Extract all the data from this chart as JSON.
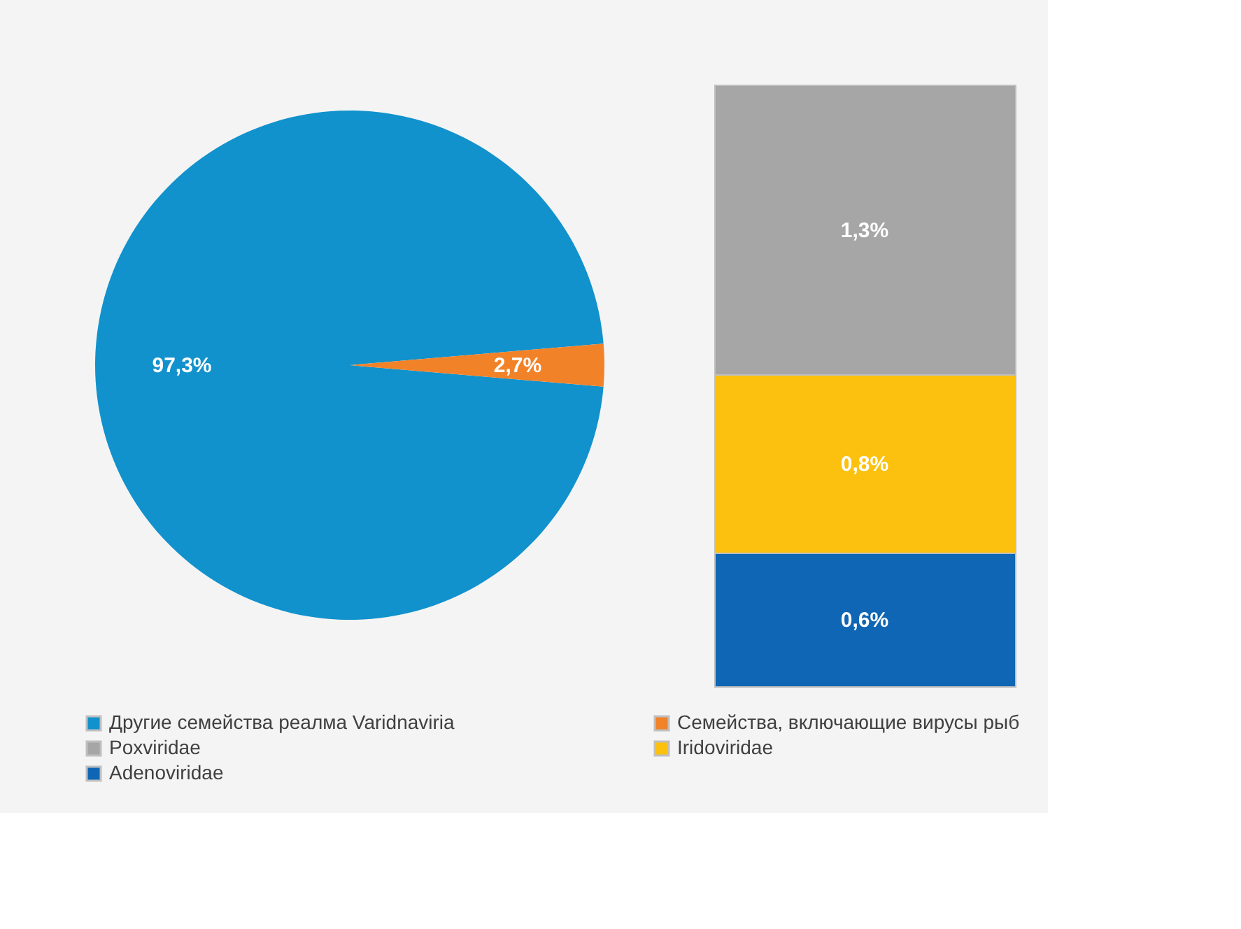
{
  "chart_data": [
    {
      "type": "pie",
      "categories": [
        "Другие семейства реалма Varidnaviria",
        "Семейства, включающие вирусы рыб"
      ],
      "values": [
        97.3,
        2.7
      ],
      "colors": [
        "#1192cc",
        "#f28228"
      ],
      "value_labels": [
        "97,3%",
        "2,7%"
      ],
      "legend": "bottom"
    },
    {
      "type": "bar",
      "stacked": true,
      "categories": [
        null
      ],
      "series": [
        {
          "name": "Adenoviridae",
          "color": "#0f66b4",
          "values": [
            0.6
          ],
          "value_labels": [
            "0,6%"
          ]
        },
        {
          "name": "Iridoviridae",
          "color": "#fcc10f",
          "values": [
            0.8
          ],
          "value_labels": [
            "0,8%"
          ]
        },
        {
          "name": "Poxviridae",
          "color": "#a6a6a6",
          "values": [
            1.3
          ],
          "value_labels": [
            "1,3%"
          ]
        }
      ],
      "legend": "bottom"
    }
  ]
}
